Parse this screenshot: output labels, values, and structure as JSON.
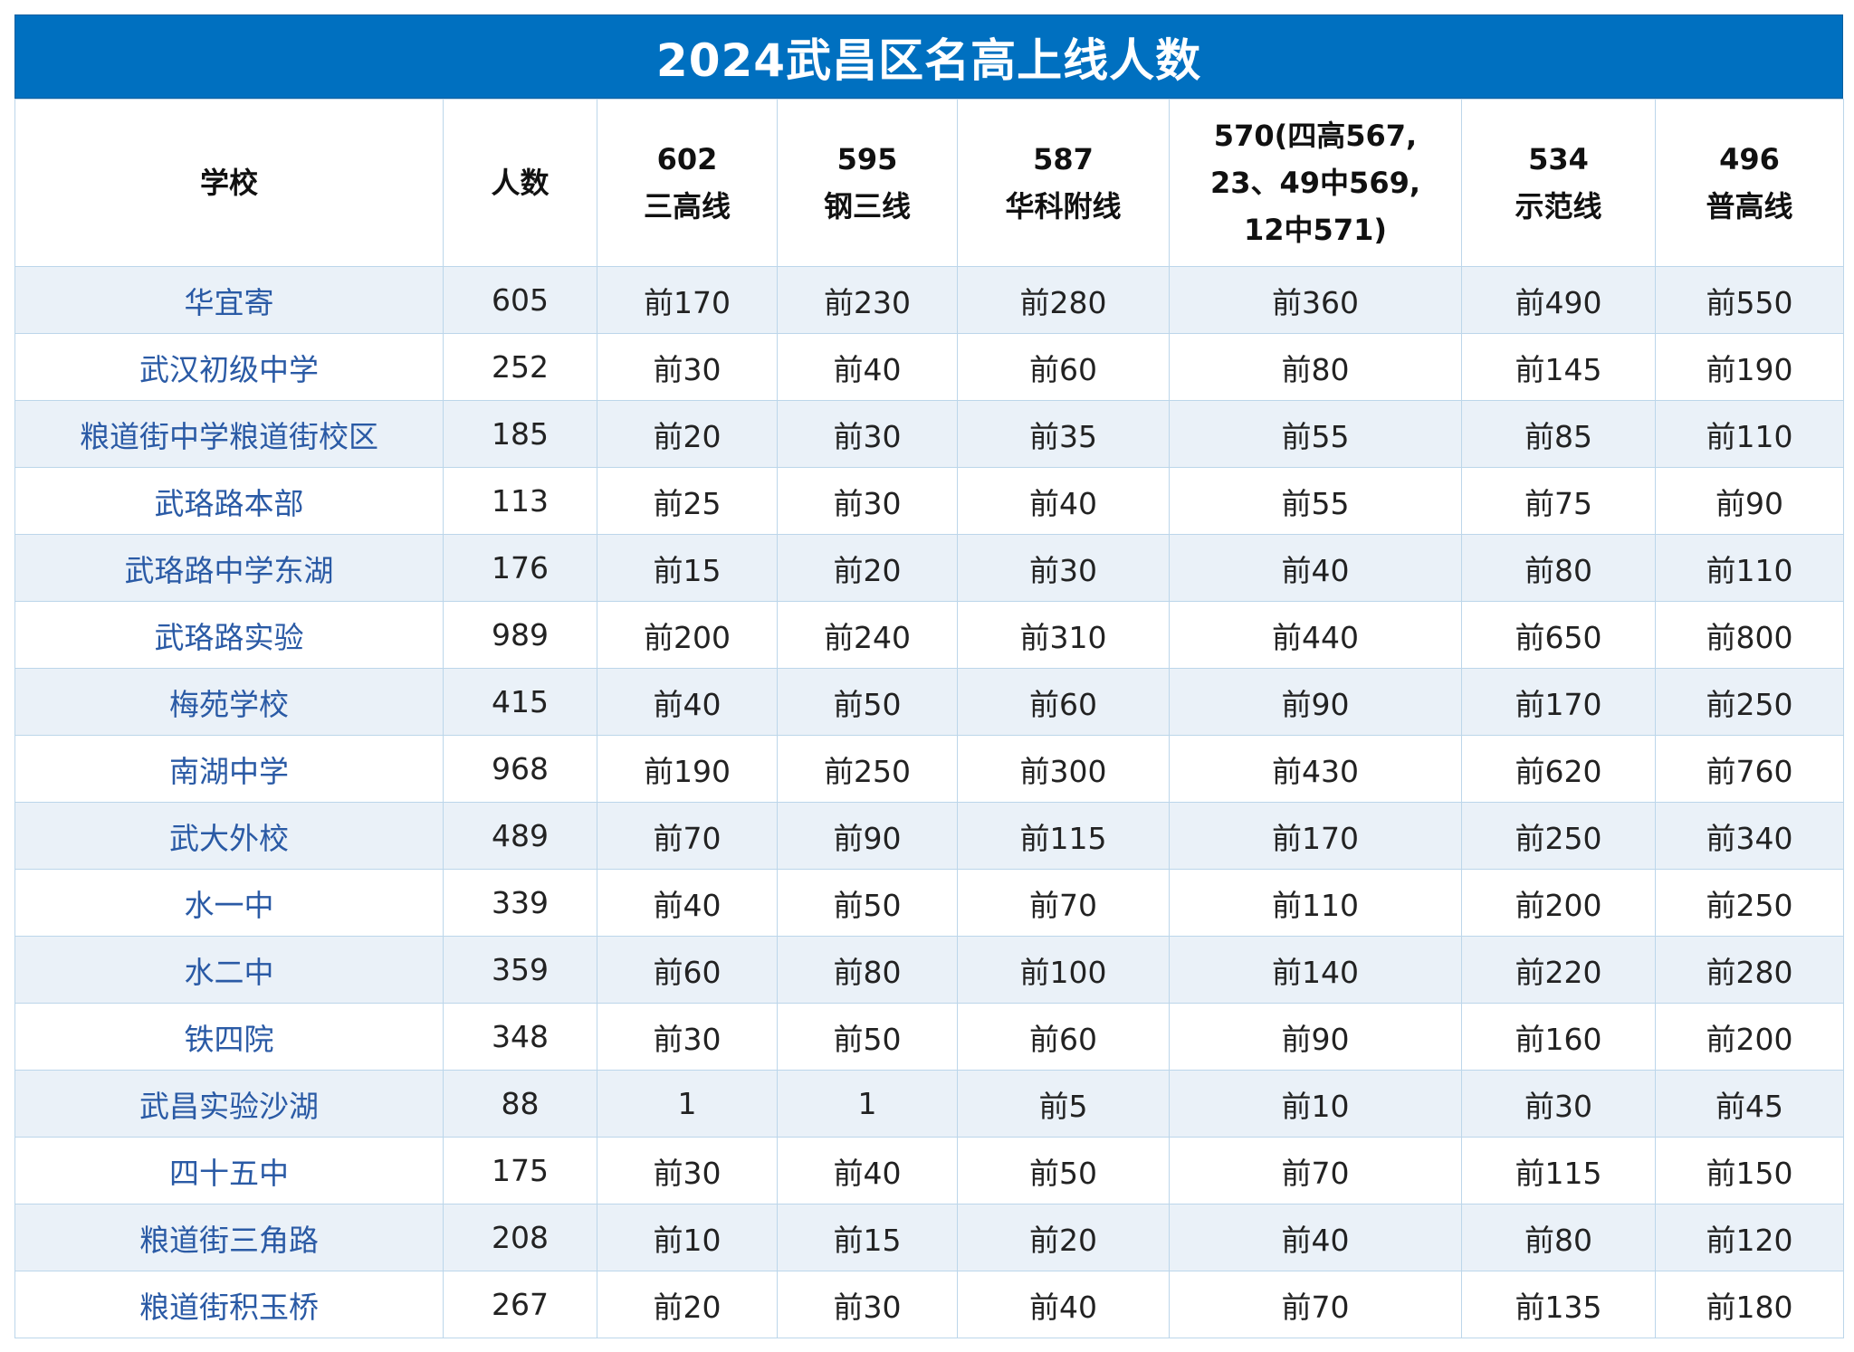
{
  "title": "2024武昌区名高上线人数",
  "headers": [
    {
      "lines": [
        "学校"
      ]
    },
    {
      "lines": [
        "人数"
      ]
    },
    {
      "lines": [
        "602",
        "三高线"
      ]
    },
    {
      "lines": [
        "595",
        "钢三线"
      ]
    },
    {
      "lines": [
        "587",
        "华科附线"
      ]
    },
    {
      "lines": [
        "570(四高567,",
        "23、49中569,",
        "12中571)"
      ]
    },
    {
      "lines": [
        "534",
        "示范线"
      ]
    },
    {
      "lines": [
        "496",
        "普高线"
      ]
    }
  ],
  "rows": [
    [
      "华宜寄",
      "605",
      "前170",
      "前230",
      "前280",
      "前360",
      "前490",
      "前550"
    ],
    [
      "武汉初级中学",
      "252",
      "前30",
      "前40",
      "前60",
      "前80",
      "前145",
      "前190"
    ],
    [
      "粮道街中学粮道街校区",
      "185",
      "前20",
      "前30",
      "前35",
      "前55",
      "前85",
      "前110"
    ],
    [
      "武珞路本部",
      "113",
      "前25",
      "前30",
      "前40",
      "前55",
      "前75",
      "前90"
    ],
    [
      "武珞路中学东湖",
      "176",
      "前15",
      "前20",
      "前30",
      "前40",
      "前80",
      "前110"
    ],
    [
      "武珞路实验",
      "989",
      "前200",
      "前240",
      "前310",
      "前440",
      "前650",
      "前800"
    ],
    [
      "梅苑学校",
      "415",
      "前40",
      "前50",
      "前60",
      "前90",
      "前170",
      "前250"
    ],
    [
      "南湖中学",
      "968",
      "前190",
      "前250",
      "前300",
      "前430",
      "前620",
      "前760"
    ],
    [
      "武大外校",
      "489",
      "前70",
      "前90",
      "前115",
      "前170",
      "前250",
      "前340"
    ],
    [
      "水一中",
      "339",
      "前40",
      "前50",
      "前70",
      "前110",
      "前200",
      "前250"
    ],
    [
      "水二中",
      "359",
      "前60",
      "前80",
      "前100",
      "前140",
      "前220",
      "前280"
    ],
    [
      "铁四院",
      "348",
      "前30",
      "前50",
      "前60",
      "前90",
      "前160",
      "前200"
    ],
    [
      "武昌实验沙湖",
      "88",
      "1",
      "1",
      "前5",
      "前10",
      "前30",
      "前45"
    ],
    [
      "四十五中",
      "175",
      "前30",
      "前40",
      "前50",
      "前70",
      "前115",
      "前150"
    ],
    [
      "粮道街三角路",
      "208",
      "前10",
      "前15",
      "前20",
      "前40",
      "前80",
      "前120"
    ],
    [
      "粮道街积玉桥",
      "267",
      "前20",
      "前30",
      "前40",
      "前70",
      "前135",
      "前180"
    ]
  ],
  "colors": {
    "title_bg": "#0070C0",
    "stripe": "#eaf1f8",
    "school_text": "#2a5aa5",
    "grid_line": "#bcd6ea"
  }
}
